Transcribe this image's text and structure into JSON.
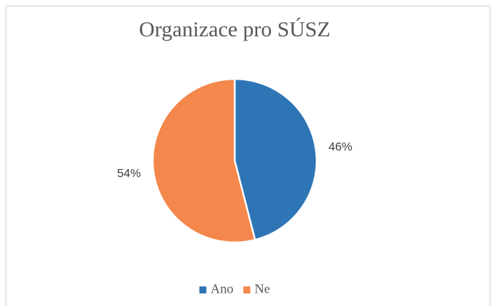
{
  "chart_data": {
    "type": "pie",
    "title": "Organizace pro SÚSZ",
    "categories": [
      "Ano",
      "Ne"
    ],
    "values": [
      46,
      54
    ],
    "value_labels": [
      "46%",
      "54%"
    ],
    "colors": [
      "#2e75b6",
      "#f4874b"
    ],
    "legend": "bottom"
  }
}
